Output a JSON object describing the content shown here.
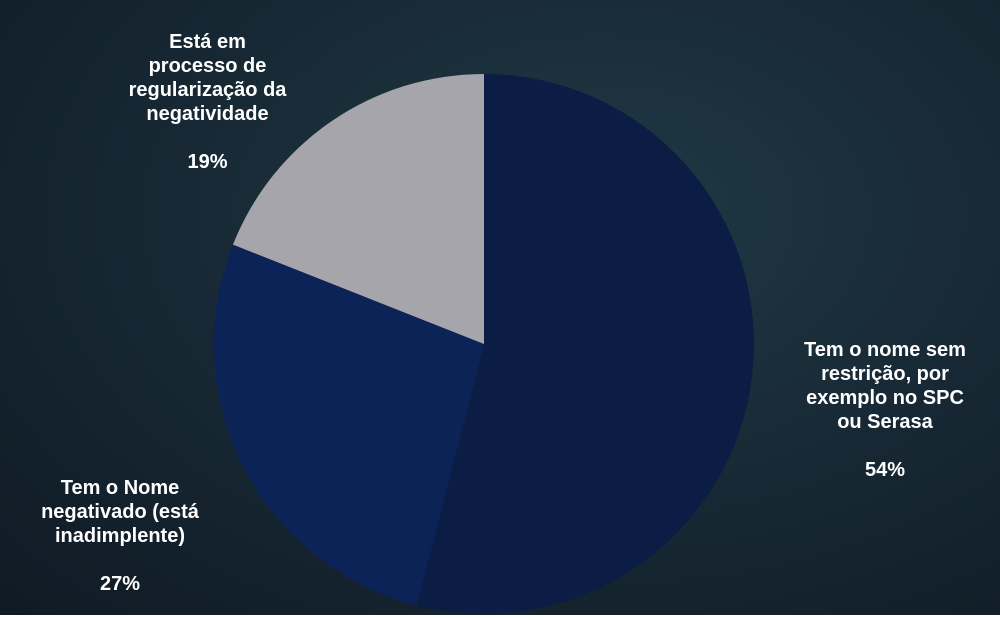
{
  "chart_data": {
    "type": "pie",
    "slices": [
      {
        "label": "Tem o nome sem restrição, por exemplo no SPC ou Serasa",
        "value": 54,
        "value_label": "54%",
        "color": "#0b1c45"
      },
      {
        "label": "Tem o Nome negativado (está inadimplente)",
        "value": 27,
        "value_label": "27%",
        "color": "#0c2357"
      },
      {
        "label": "Está em processo de regularização da negatividade",
        "value": 19,
        "value_label": "19%",
        "color": "#a5a5ab"
      }
    ]
  }
}
